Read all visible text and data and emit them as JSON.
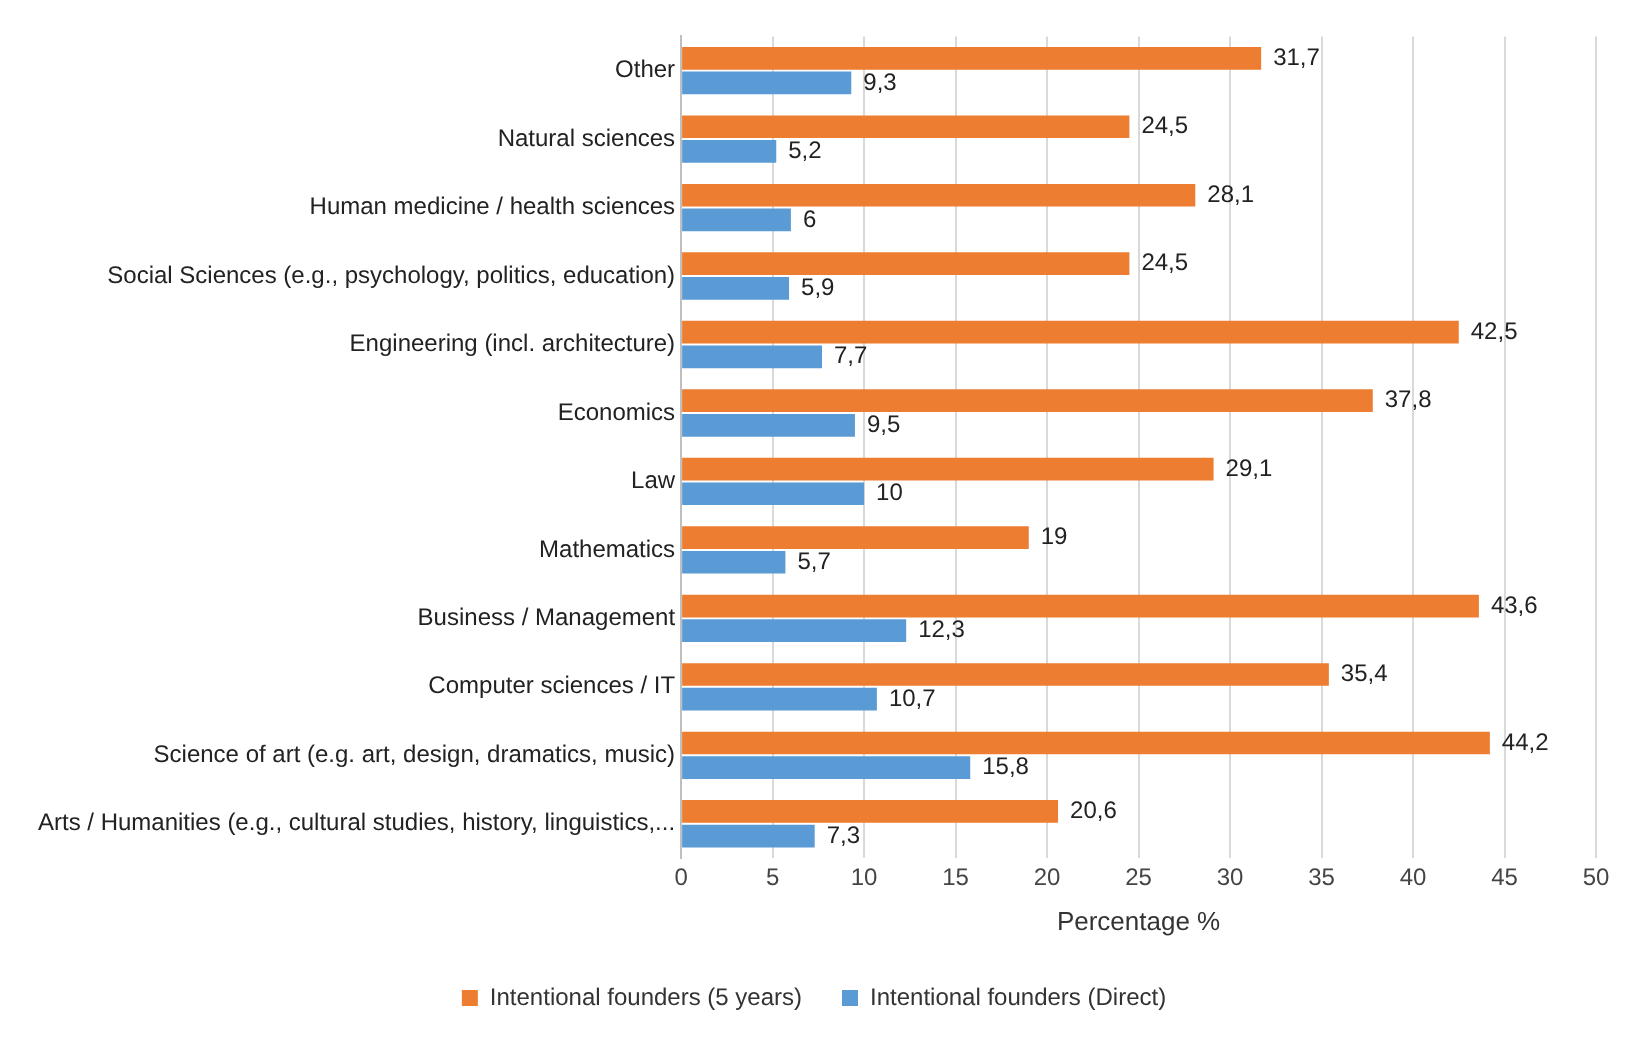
{
  "chart_data": {
    "type": "bar",
    "orientation": "horizontal",
    "xlabel": "Percentage %",
    "categories": [
      "Other",
      "Natural sciences",
      "Human medicine / health sciences",
      "Social Sciences (e.g., psychology, politics, education)",
      "Engineering (incl. architecture)",
      "Economics",
      "Law",
      "Mathematics",
      "Business / Management",
      "Computer sciences / IT",
      "Science of art (e.g. art, design, dramatics, music)",
      "Arts / Humanities (e.g., cultural studies, history, linguistics,..."
    ],
    "series": [
      {
        "name": "Intentional founders (5 years)",
        "color": "#ed7d31",
        "values": [
          31.7,
          24.5,
          28.1,
          24.5,
          42.5,
          37.8,
          29.1,
          19,
          43.6,
          35.4,
          44.2,
          20.6
        ],
        "value_labels": [
          "31,7",
          "24,5",
          "28,1",
          "24,5",
          "42,5",
          "37,8",
          "29,1",
          "19",
          "43,6",
          "35,4",
          "44,2",
          "20,6"
        ]
      },
      {
        "name": "Intentional founders (Direct)",
        "color": "#5b9bd5",
        "values": [
          9.3,
          5.2,
          6,
          5.9,
          7.7,
          9.5,
          10,
          5.7,
          12.3,
          10.7,
          15.8,
          7.3
        ],
        "value_labels": [
          "9,3",
          "5,2",
          "6",
          "5,9",
          "7,7",
          "9,5",
          "10",
          "5,7",
          "12,3",
          "10,7",
          "15,8",
          "7,3"
        ]
      }
    ],
    "xlim": [
      0,
      50
    ],
    "xticks": [
      0,
      5,
      10,
      15,
      20,
      25,
      30,
      35,
      40,
      45,
      50
    ],
    "grid": "x",
    "legend": "bottom"
  }
}
